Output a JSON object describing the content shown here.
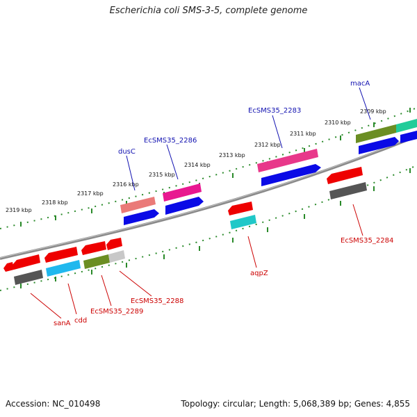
{
  "title": "Escherichia coli SMS-3-5, complete genome",
  "footer": {
    "accession": "Accession: NC_010498",
    "summary": "Topology: circular; Length: 5,068,389 bp; Genes: 4,855"
  },
  "colors": {
    "forward_label": "#1010b0",
    "reverse_label": "#cc0000",
    "tick": "#2a8a2a",
    "backbone": "#808080"
  },
  "kbp_labels": [
    "2309 kbp",
    "2310 kbp",
    "2311 kbp",
    "2312 kbp",
    "2313 kbp",
    "2314 kbp",
    "2315 kbp",
    "2316 kbp",
    "2317 kbp",
    "2318 kbp",
    "2319 kbp"
  ],
  "gene_labels": {
    "macA": "macA",
    "EcSMS35_2283": "EcSMS35_2283",
    "EcSMS35_2286": "EcSMS35_2286",
    "dusC": "dusC",
    "EcSMS35_2284": "EcSMS35_2284",
    "aqpZ": "aqpZ",
    "EcSMS35_2288": "EcSMS35_2288",
    "EcSMS35_2289": "EcSMS35_2289",
    "cdd": "cdd",
    "sanA": "sanA"
  }
}
